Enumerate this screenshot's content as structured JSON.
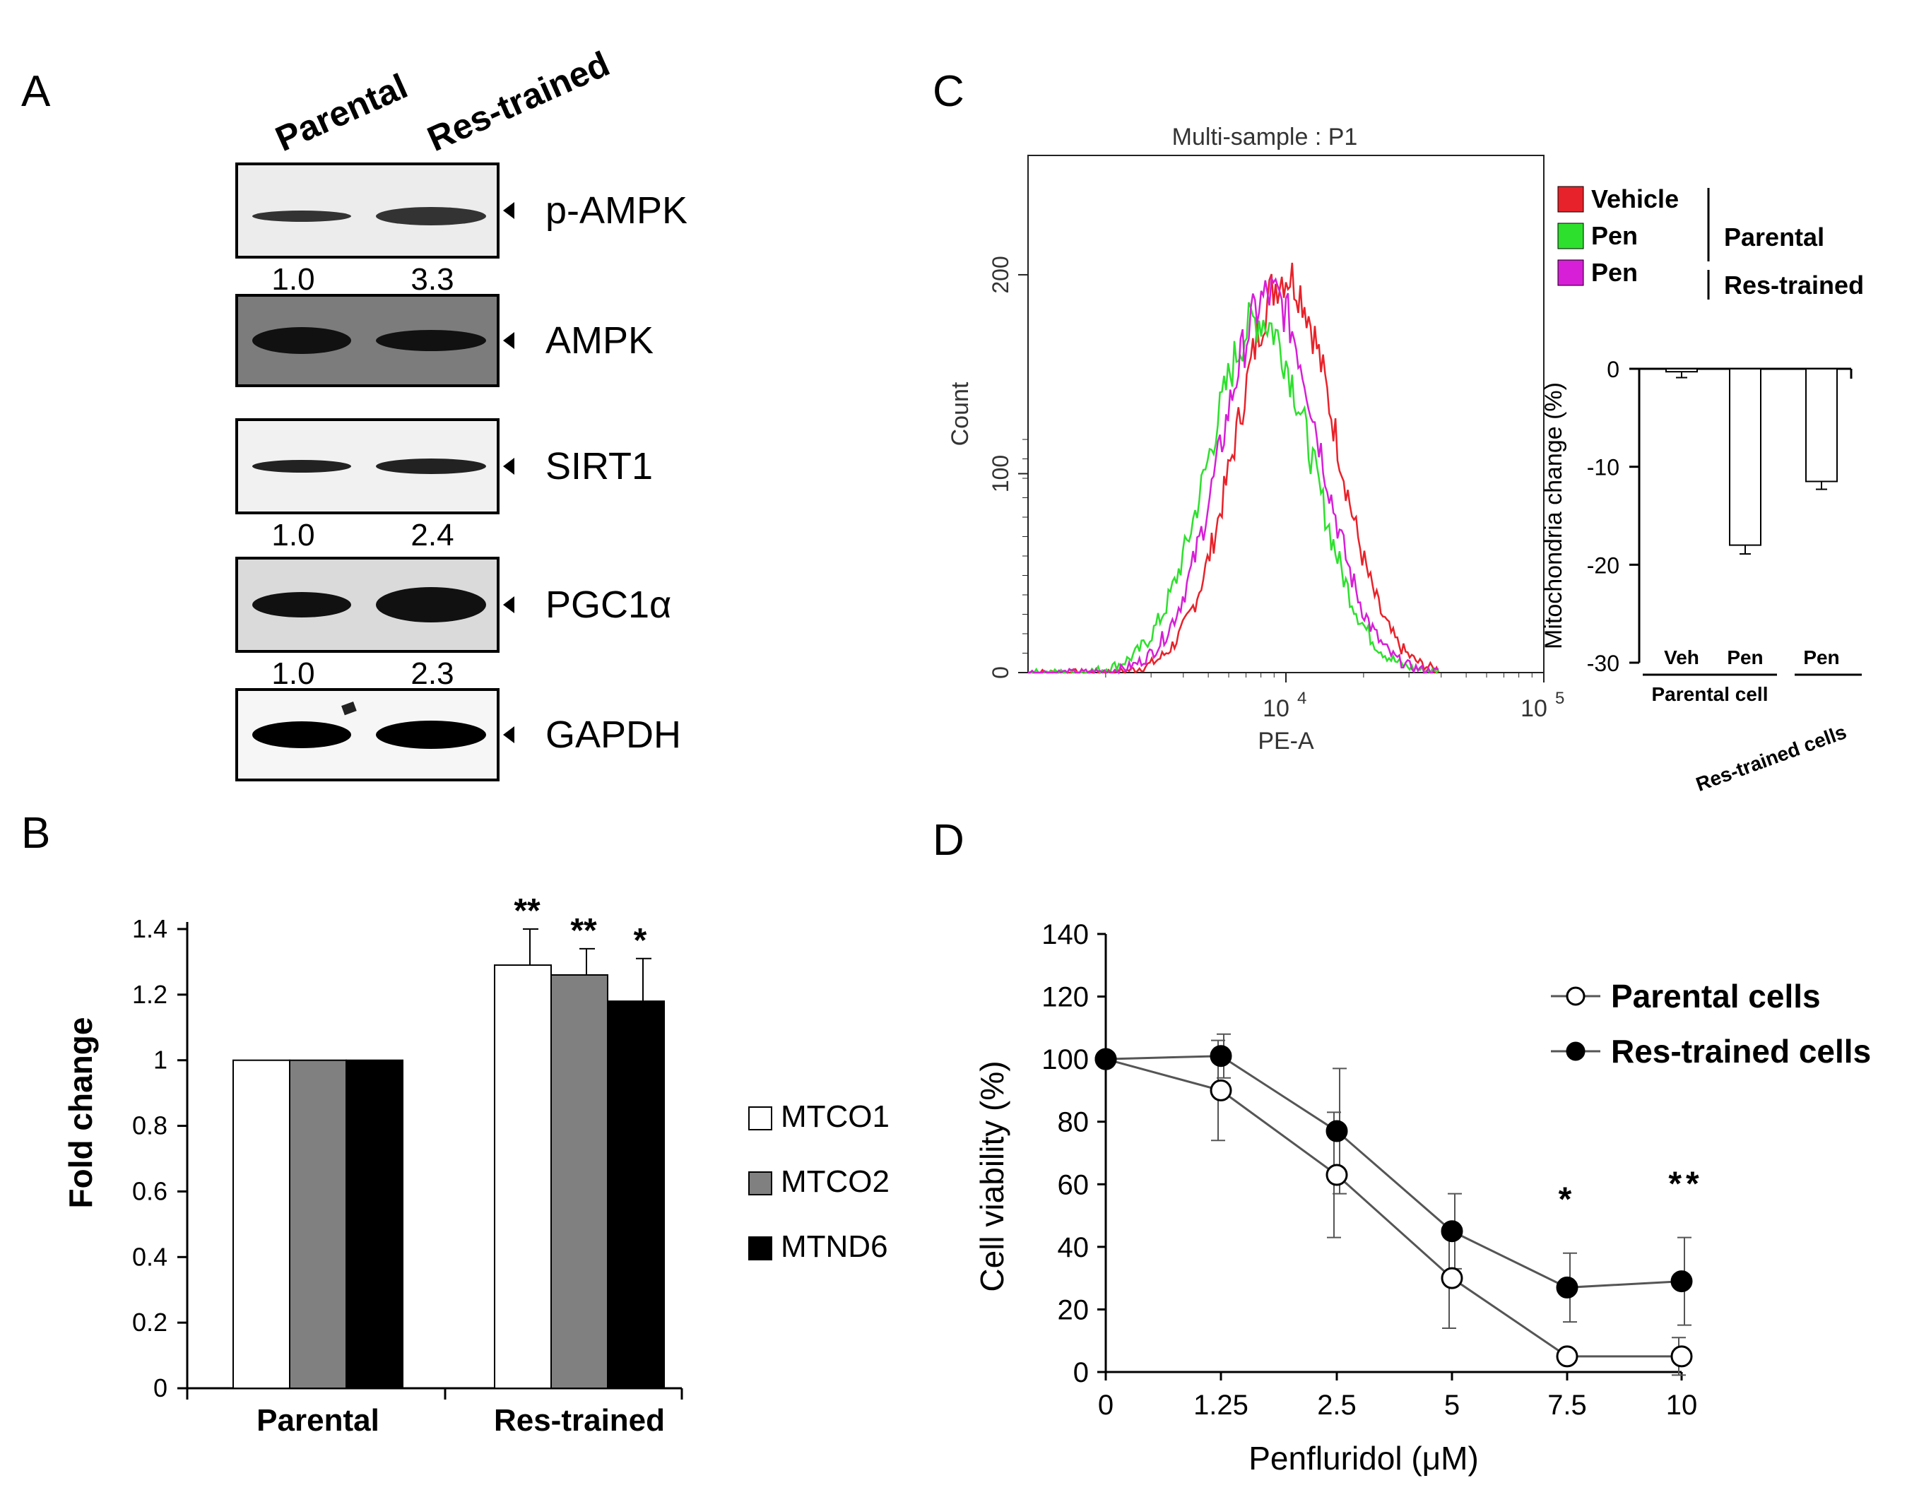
{
  "panels": {
    "a": "A",
    "b": "B",
    "c": "C",
    "d": "D"
  },
  "colors": {
    "vehicle": "#e8222a",
    "pen_parental": "#2ee02e",
    "pen_res": "#d61fd6",
    "mtco1": "#ffffff",
    "mtco2": "#808080",
    "mtnd6": "#000000"
  },
  "western": {
    "lanes": [
      "Parental",
      "Res-trained"
    ],
    "bands": [
      {
        "label": "p-AMPK",
        "quant": [
          "1.0",
          "3.3"
        ]
      },
      {
        "label": "AMPK",
        "quant": []
      },
      {
        "label": "SIRT1",
        "quant": [
          "1.0",
          "2.4"
        ]
      },
      {
        "label": "PGC1α",
        "quant": [
          "1.0",
          "2.3"
        ]
      },
      {
        "label": "GAPDH",
        "quant": []
      }
    ]
  },
  "chart_data": [
    {
      "panel": "B",
      "type": "bar",
      "categories": [
        "Parental",
        "Res-trained"
      ],
      "series": [
        {
          "name": "MTCO1",
          "color": "#ffffff",
          "values": [
            1.0,
            1.29
          ],
          "errors": [
            0,
            0.11
          ]
        },
        {
          "name": "MTCO2",
          "color": "#808080",
          "values": [
            1.0,
            1.26
          ],
          "errors": [
            0,
            0.08
          ]
        },
        {
          "name": "MTND6",
          "color": "#000000",
          "values": [
            1.0,
            1.18
          ],
          "errors": [
            0,
            0.13
          ]
        }
      ],
      "significance": [
        "**",
        "**",
        "*"
      ],
      "ylabel": "Fold change",
      "ylim": [
        0,
        1.4
      ],
      "yticks": [
        "0",
        "0.2",
        "0.4",
        "0.6",
        "0.8",
        "1",
        "1.2",
        "1.4"
      ],
      "legend": "right"
    },
    {
      "panel": "C",
      "type": "line",
      "title": "Multi-sample : P1",
      "xlabel": "PE-A",
      "ylabel": "Count",
      "xscale": "log",
      "x_ticks": [
        "10",
        "10"
      ],
      "x_tick_exponents": [
        "4",
        "5"
      ],
      "yticks": [
        "0",
        "100",
        "200"
      ],
      "ylim": [
        0,
        260
      ],
      "series": [
        {
          "name": "Vehicle",
          "color": "#e8222a",
          "peak_log_x": 4.0,
          "sigma": 0.19,
          "peak_count": 200
        },
        {
          "name": "Pen",
          "color": "#2ee02e",
          "peak_log_x": 3.9,
          "sigma": 0.2,
          "peak_count": 178
        },
        {
          "name": "Pen",
          "color": "#d61fd6",
          "peak_log_x": 3.94,
          "sigma": 0.19,
          "peak_count": 190
        }
      ],
      "legend_groups": [
        {
          "label": "Parental",
          "members": [
            "Vehicle",
            "Pen"
          ]
        },
        {
          "label": "Res-trained",
          "members": [
            "Pen"
          ]
        }
      ]
    },
    {
      "panel": "C-inset",
      "type": "bar",
      "categories": [
        "Veh",
        "Pen",
        "Pen"
      ],
      "values": [
        -0.3,
        -18.0,
        -11.5
      ],
      "errors": [
        0.6,
        0.9,
        0.8
      ],
      "ylabel": "Mitochondria change (%)",
      "ylim": [
        -30,
        0
      ],
      "yticks": [
        "0",
        "-10",
        "-20",
        "-30"
      ],
      "groups": [
        "Parental cell",
        "Res-trained cells"
      ]
    },
    {
      "panel": "D",
      "type": "line",
      "x": [
        "0",
        "1.25",
        "2.5",
        "5",
        "7.5",
        "10"
      ],
      "series": [
        {
          "name": "Parental cells",
          "marker": "open-circle",
          "values": [
            100,
            90,
            63,
            30,
            5,
            5
          ],
          "errors": [
            0,
            16,
            20,
            16,
            0,
            6
          ]
        },
        {
          "name": "Res-trained cells",
          "marker": "filled-circle",
          "values": [
            100,
            101,
            77,
            45,
            27,
            29
          ],
          "errors": [
            0,
            7,
            20,
            12,
            11,
            14
          ]
        }
      ],
      "significance": {
        "7.5": "*",
        "10": "**"
      },
      "xlabel": "Penfluridol (μM)",
      "ylabel": "Cell viability (%)",
      "ylim": [
        0,
        140
      ],
      "yticks": [
        "0",
        "20",
        "40",
        "60",
        "80",
        "100",
        "120",
        "140"
      ],
      "legend": "top-right"
    }
  ]
}
